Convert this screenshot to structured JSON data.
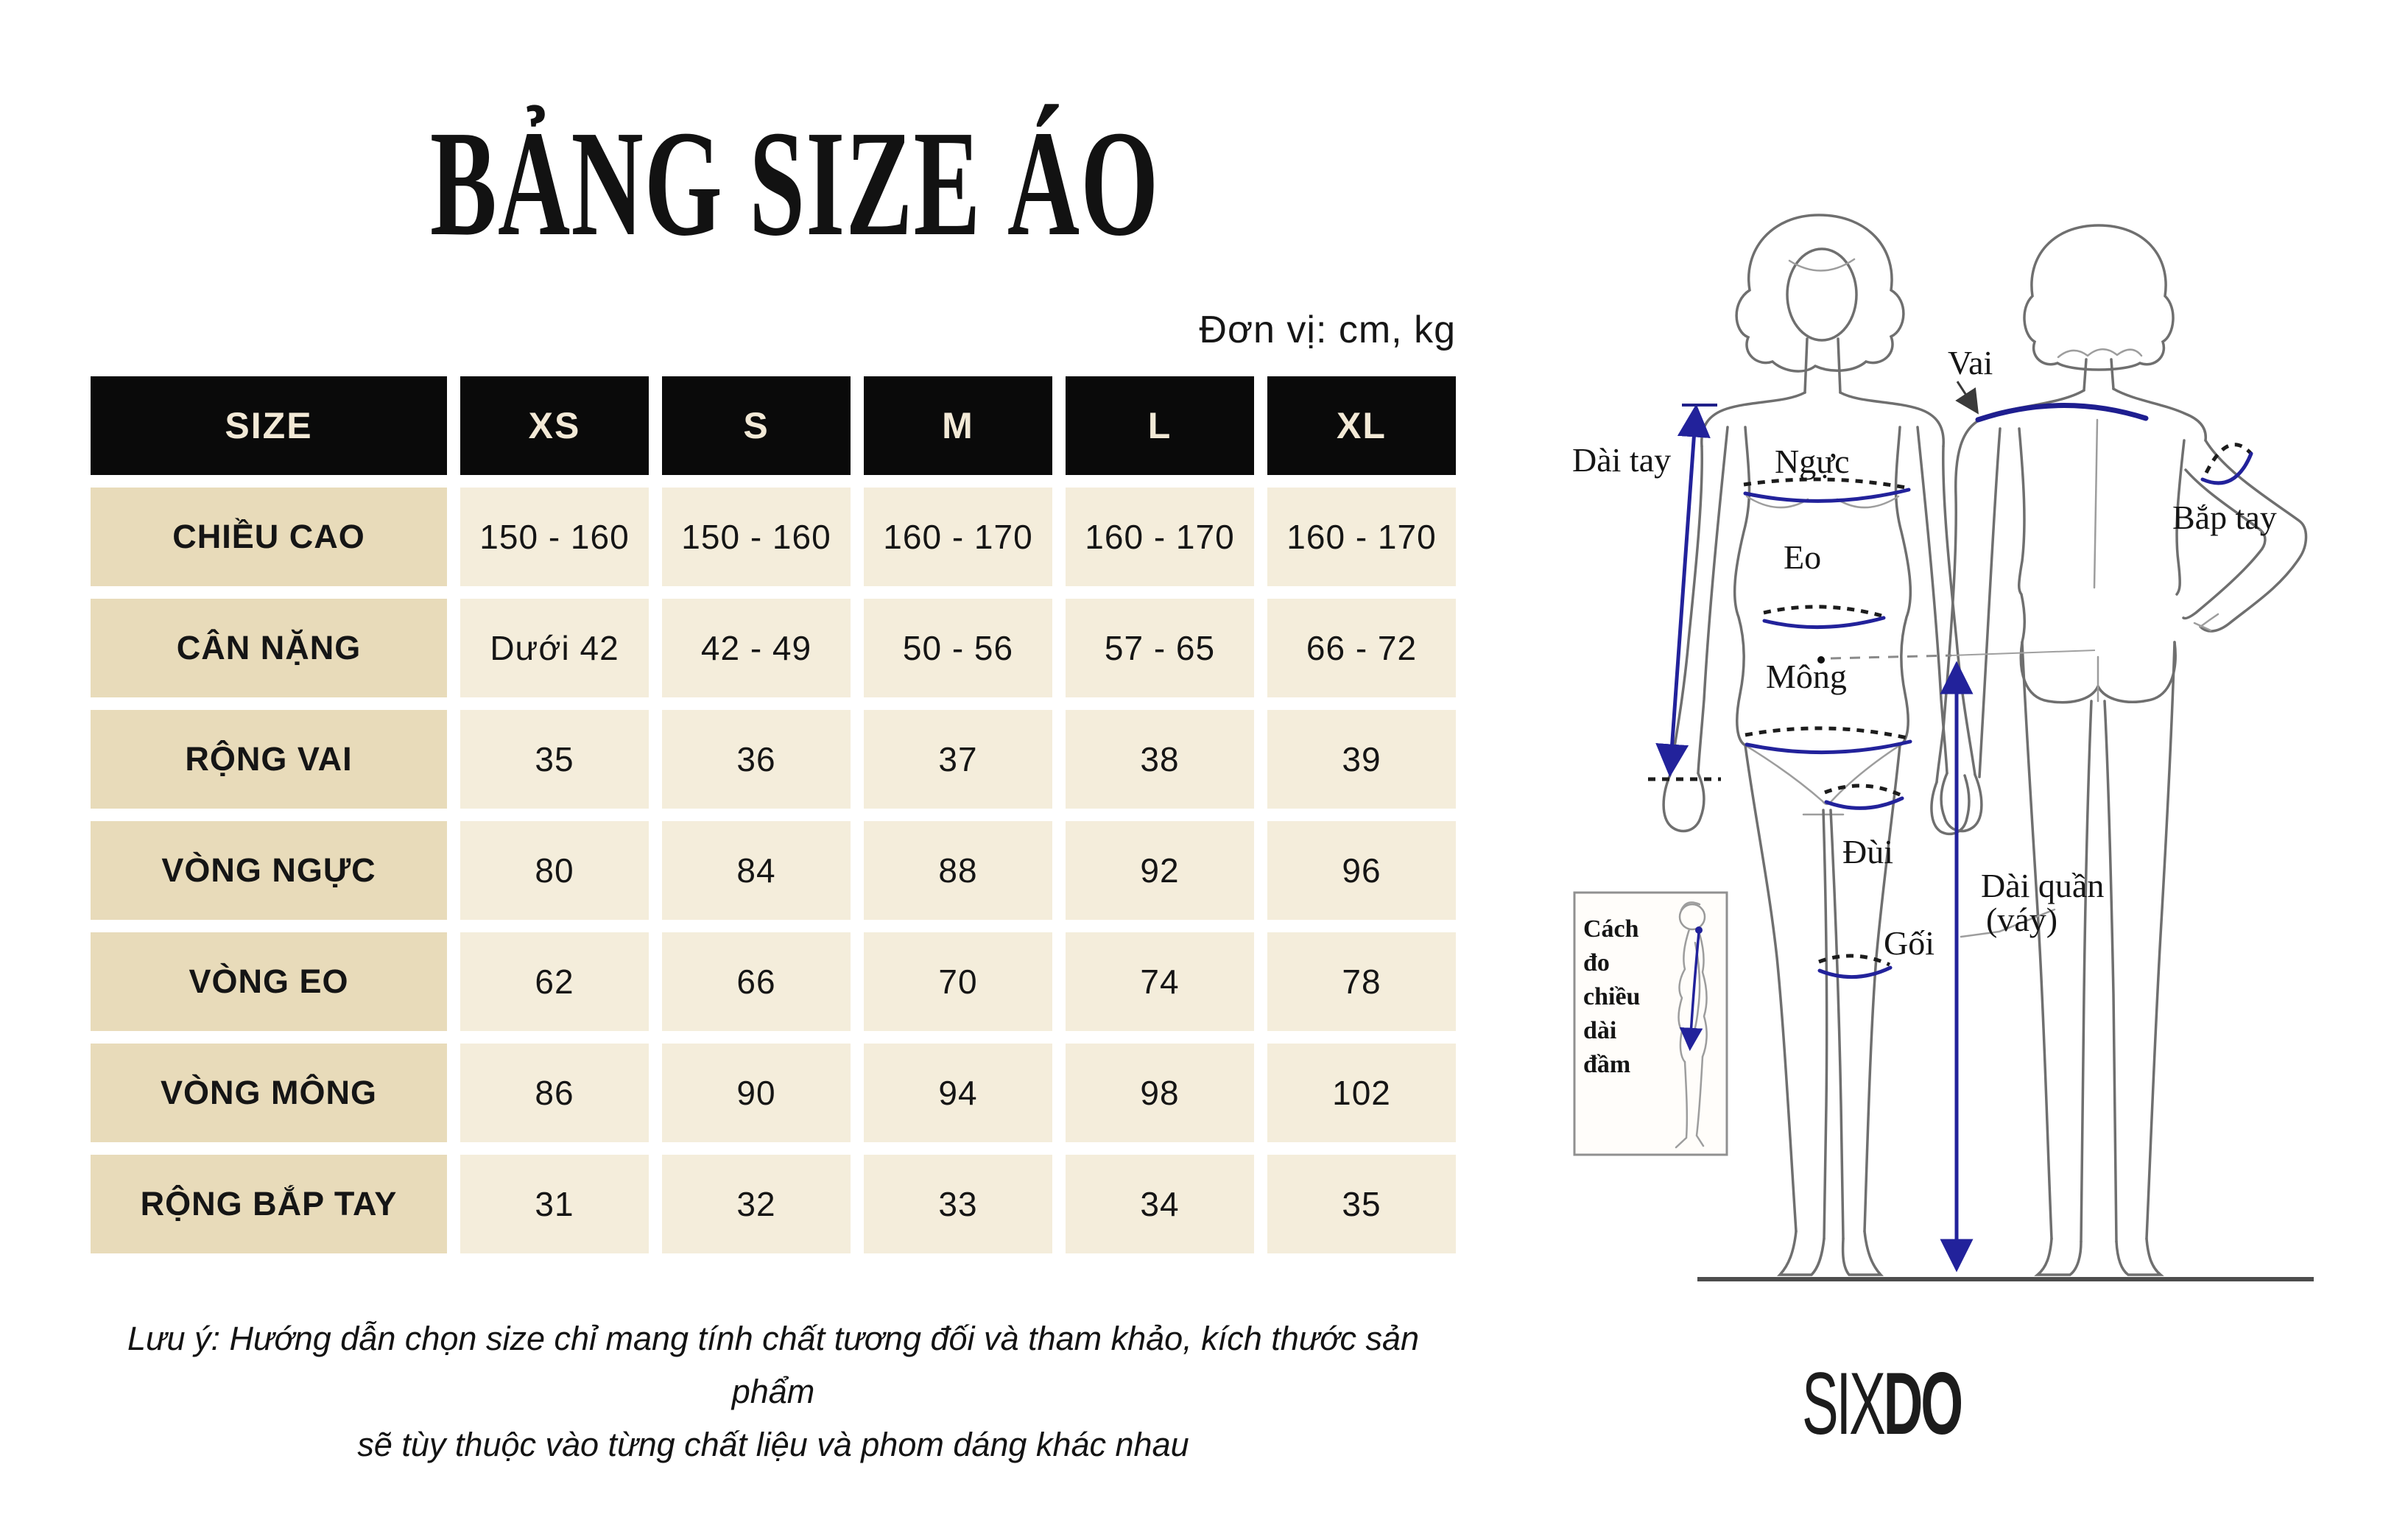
{
  "page": {
    "title": "BẢNG SIZE ÁO",
    "unit_note": "Đơn vị: cm, kg",
    "footnote_line1": "Lưu ý: Hướng dẫn chọn size chỉ mang tính chất tương đối và tham khảo, kích thước sản phẩm",
    "footnote_line2": "sẽ tùy thuộc vào từng chất liệu và phom dáng khác nhau"
  },
  "brand": {
    "six": "SIX",
    "do": "DO"
  },
  "colors": {
    "header_bg": "#0a0a0a",
    "header_text": "#f2e9d6",
    "label_cell_bg": "#e8dbba",
    "data_cell_bg": "#f4eddb",
    "measure_line_navy": "#22229b"
  },
  "table": {
    "header": [
      "SIZE",
      "XS",
      "S",
      "M",
      "L",
      "XL"
    ],
    "rows": [
      {
        "label": "CHIỀU CAO",
        "values": [
          "150 - 160",
          "150 - 160",
          "160 - 170",
          "160 - 170",
          "160 - 170"
        ]
      },
      {
        "label": "CÂN NẶNG",
        "values": [
          "Dưới 42",
          "42 - 49",
          "50 - 56",
          "57 - 65",
          "66 - 72"
        ]
      },
      {
        "label": "RỘNG VAI",
        "values": [
          "35",
          "36",
          "37",
          "38",
          "39"
        ]
      },
      {
        "label": "VÒNG NGỰC",
        "values": [
          "80",
          "84",
          "88",
          "92",
          "96"
        ]
      },
      {
        "label": "VÒNG EO",
        "values": [
          "62",
          "66",
          "70",
          "74",
          "78"
        ]
      },
      {
        "label": "VÒNG MÔNG",
        "values": [
          "86",
          "90",
          "94",
          "98",
          "102"
        ]
      },
      {
        "label": "RỘNG BẮP TAY",
        "values": [
          "31",
          "32",
          "33",
          "34",
          "35"
        ]
      }
    ]
  },
  "diagram": {
    "vai": "Vai",
    "nguc": "Ngực",
    "eo": "Eo",
    "mong": "Mông",
    "dai_tay": "Dài tay",
    "bap_tay": "Bắp tay",
    "dui": "Đùi",
    "goi": "Gối",
    "dai_quan_1": "Dài quần",
    "dai_quan_2": "(váy)",
    "inset_1": "Cách",
    "inset_2": "đo",
    "inset_3": "chiều",
    "inset_4": "dài",
    "inset_5": "đầm"
  }
}
